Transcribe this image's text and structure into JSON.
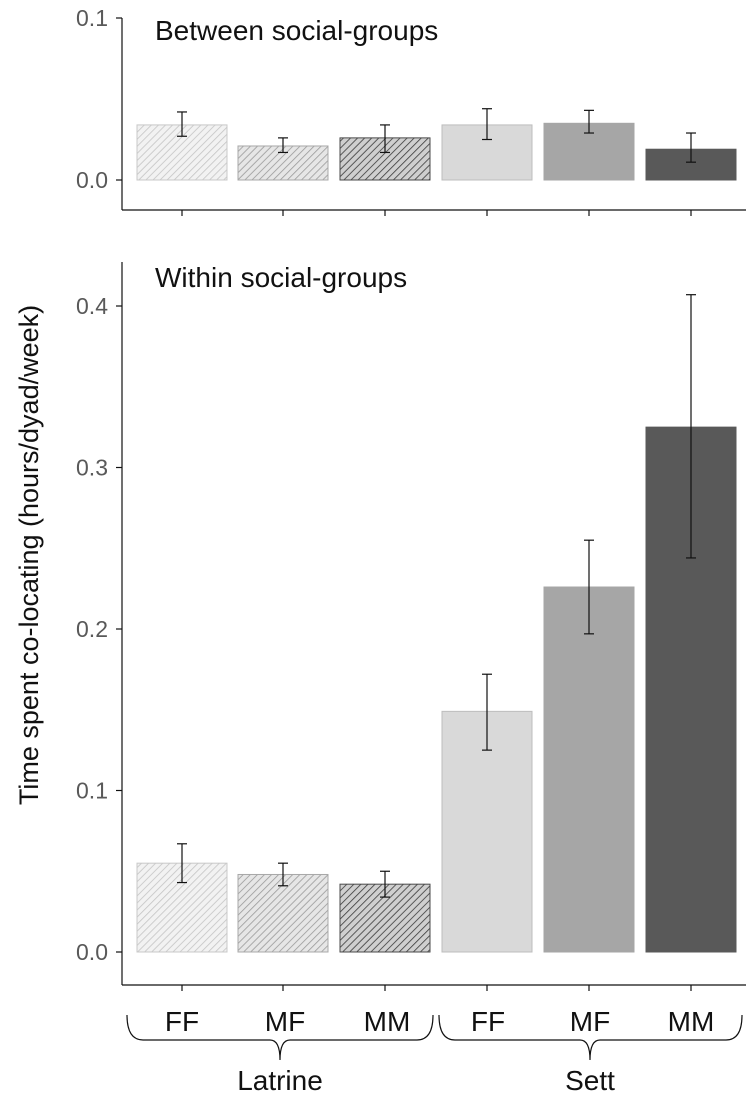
{
  "y_axis_label": "Time spent co-locating (hours/dyad/week)",
  "chart_data": [
    {
      "type": "bar",
      "title": "Between social-groups",
      "categories": [
        "FF",
        "MF",
        "MM",
        "FF",
        "MF",
        "MM"
      ],
      "groups": [
        {
          "label": "Latrine",
          "categories": [
            "FF",
            "MF",
            "MM"
          ]
        },
        {
          "label": "Sett",
          "categories": [
            "FF",
            "MF",
            "MM"
          ]
        }
      ],
      "values": [
        0.034,
        0.021,
        0.026,
        0.034,
        0.035,
        0.019
      ],
      "error_low": [
        0.027,
        0.017,
        0.017,
        0.025,
        0.029,
        0.011
      ],
      "error_high": [
        0.042,
        0.026,
        0.034,
        0.044,
        0.043,
        0.029
      ],
      "ylim": [
        0,
        0.1
      ],
      "yticks": [
        "0.0",
        "0.1"
      ],
      "ylabel": "Time spent co-locating (hours/dyad/week)",
      "grid": false
    },
    {
      "type": "bar",
      "title": "Within social-groups",
      "categories": [
        "FF",
        "MF",
        "MM",
        "FF",
        "MF",
        "MM"
      ],
      "groups": [
        {
          "label": "Latrine",
          "categories": [
            "FF",
            "MF",
            "MM"
          ]
        },
        {
          "label": "Sett",
          "categories": [
            "FF",
            "MF",
            "MM"
          ]
        }
      ],
      "values": [
        0.055,
        0.048,
        0.042,
        0.149,
        0.226,
        0.325
      ],
      "error_low": [
        0.043,
        0.041,
        0.034,
        0.125,
        0.197,
        0.244
      ],
      "error_high": [
        0.067,
        0.055,
        0.05,
        0.172,
        0.255,
        0.407
      ],
      "ylim": [
        0,
        0.4
      ],
      "yticks": [
        "0.0",
        "0.1",
        "0.2",
        "0.3",
        "0.4"
      ],
      "ylabel": "Time spent co-locating (hours/dyad/week)",
      "grid": false
    }
  ],
  "bar_styles": [
    {
      "fill": "#f2f2f2",
      "stroke": "#c8c8c8",
      "hatch": "#c4c4c4"
    },
    {
      "fill": "#e6e6e6",
      "stroke": "#a8a8a8",
      "hatch": "#9a9a9a"
    },
    {
      "fill": "#cfcfcf",
      "stroke": "#4a4a4a",
      "hatch": "#3a3a3a"
    },
    {
      "fill": "#d9d9d9",
      "stroke": "#bdbdbd",
      "hatch": null
    },
    {
      "fill": "#a6a6a6",
      "stroke": "#a6a6a6",
      "hatch": null
    },
    {
      "fill": "#595959",
      "stroke": "#595959",
      "hatch": null
    }
  ]
}
